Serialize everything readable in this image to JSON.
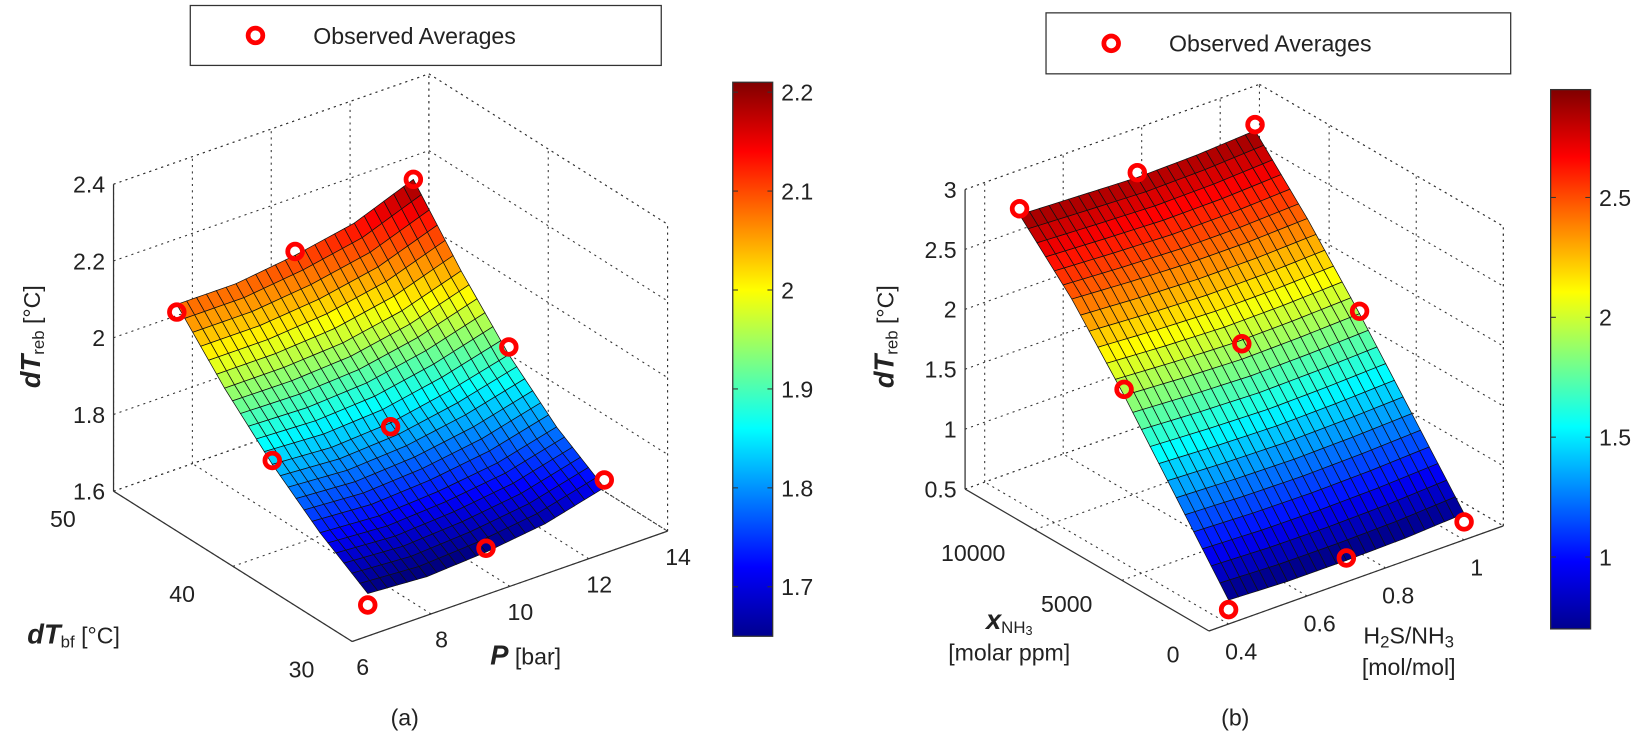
{
  "chart_data": [
    {
      "type": "surface3d",
      "caption": "(a)",
      "xlabel": [
        [
          {
            "text": "P",
            "style": "bi"
          },
          {
            "text": " [bar]",
            "style": "plain"
          }
        ]
      ],
      "ylabel": [
        [
          {
            "text": "dT",
            "style": "bi"
          },
          {
            "text": "bf",
            "style": "sub"
          },
          {
            "text": " [°C]",
            "style": "plain"
          }
        ]
      ],
      "zlabel": [
        [
          {
            "text": "dT",
            "style": "bi"
          },
          {
            "text": "reb",
            "style": "sub"
          },
          {
            "text": " [°C]",
            "style": "plain"
          }
        ]
      ],
      "xlim": [
        6,
        14
      ],
      "xticks": [
        6,
        8,
        10,
        12,
        14
      ],
      "ylim": [
        30,
        50
      ],
      "yticks": [
        30,
        40,
        50
      ],
      "zlim": [
        1.6,
        2.4
      ],
      "zticks": [
        1.6,
        1.8,
        2,
        2.2,
        2.4
      ],
      "clim": [
        1.65,
        2.21
      ],
      "cticks": [
        1.7,
        1.8,
        1.9,
        2,
        2.1,
        2.2
      ],
      "grid": true,
      "surface": {
        "x": [
          7,
          8.5,
          10,
          11.5,
          13
        ],
        "y": [
          32,
          36,
          40,
          44,
          48
        ],
        "z": [
          [
            1.65,
            1.64,
            1.65,
            1.67,
            1.71
          ],
          [
            1.73,
            1.72,
            1.73,
            1.75,
            1.79
          ],
          [
            1.83,
            1.82,
            1.83,
            1.86,
            1.9
          ],
          [
            1.95,
            1.95,
            1.96,
            1.99,
            2.04
          ],
          [
            2.09,
            2.09,
            2.11,
            2.14,
            2.2
          ]
        ]
      },
      "series": [
        {
          "name": "Observed Averages",
          "color": "#ff0000",
          "x": [
            7,
            10,
            13,
            7,
            10,
            13,
            7,
            10,
            13
          ],
          "y": [
            32,
            32,
            32,
            40,
            40,
            40,
            48,
            48,
            48
          ],
          "z": [
            1.62,
            1.66,
            1.73,
            1.84,
            1.82,
            1.92,
            2.07,
            2.12,
            2.2
          ]
        }
      ]
    },
    {
      "type": "surface3d",
      "caption": "(b)",
      "xlabel": [
        [
          {
            "text": "H",
            "style": "plain"
          },
          {
            "text": "2",
            "style": "sub"
          },
          {
            "text": "S/NH",
            "style": "plain"
          },
          {
            "text": "3",
            "style": "sub"
          }
        ],
        [
          {
            "text": "[mol/mol]",
            "style": "plain"
          }
        ]
      ],
      "ylabel": [
        [
          {
            "text": "x",
            "style": "bi"
          },
          {
            "text": "NH",
            "style": "sub"
          },
          {
            "text": "3",
            "style": "subsub"
          }
        ],
        [
          {
            "text": "[molar ppm]",
            "style": "plain"
          }
        ]
      ],
      "zlabel": [
        [
          {
            "text": "dT",
            "style": "bi"
          },
          {
            "text": "reb",
            "style": "sub"
          },
          {
            "text": " [°C]",
            "style": "plain"
          }
        ]
      ],
      "xlim": [
        0.35,
        1.1
      ],
      "xticks": [
        0.4,
        0.6,
        0.8,
        1
      ],
      "ylim": [
        0,
        14000
      ],
      "yticks": [
        0,
        5000,
        10000
      ],
      "zlim": [
        0.5,
        3
      ],
      "zticks": [
        0.5,
        1,
        1.5,
        2,
        2.5,
        3
      ],
      "clim": [
        0.7,
        2.95
      ],
      "cticks": [
        1,
        1.5,
        2,
        2.5
      ],
      "grid": true,
      "surface": {
        "x": [
          0.4,
          0.55,
          0.7,
          0.85,
          1.0
        ],
        "y": [
          0,
          3000,
          6000,
          9000,
          12000
        ],
        "z": [
          [
            0.7,
            0.68,
            0.68,
            0.69,
            0.72
          ],
          [
            1.3,
            1.28,
            1.27,
            1.28,
            1.3
          ],
          [
            1.9,
            1.87,
            1.85,
            1.86,
            1.88
          ],
          [
            2.45,
            2.42,
            2.4,
            2.4,
            2.42
          ],
          [
            2.9,
            2.88,
            2.86,
            2.87,
            2.9
          ]
        ]
      },
      "series": [
        {
          "name": "Observed Averages",
          "color": "#ff0000",
          "x": [
            0.4,
            0.7,
            1.0,
            0.4,
            0.7,
            1.0,
            0.4,
            0.7,
            1.0
          ],
          "y": [
            0,
            0,
            0,
            6000,
            6000,
            6000,
            12000,
            12000,
            12000
          ],
          "z": [
            0.62,
            0.7,
            0.65,
            1.95,
            1.98,
            1.9,
            2.95,
            2.9,
            2.95
          ]
        }
      ]
    }
  ]
}
